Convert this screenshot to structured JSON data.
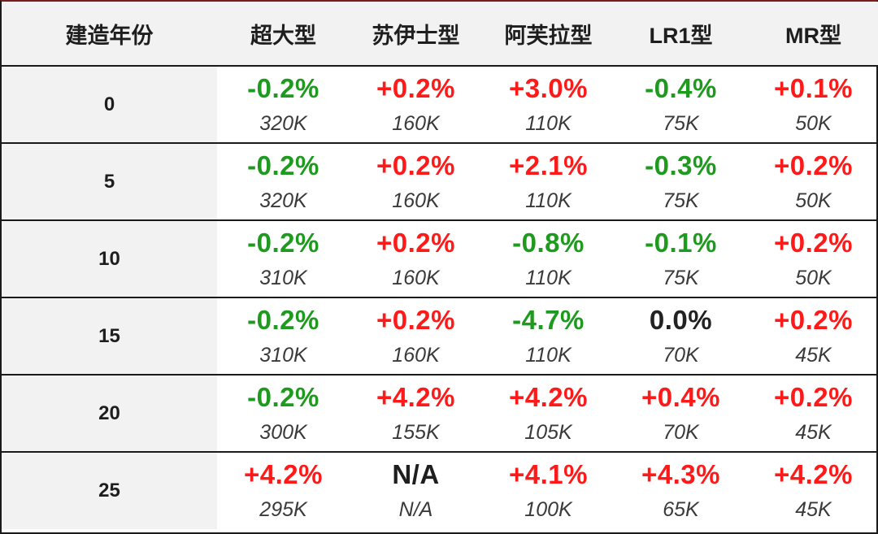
{
  "table": {
    "headers": [
      "建造年份",
      "超大型",
      "苏伊士型",
      "阿芙拉型",
      "LR1型",
      "MR型"
    ],
    "rows": [
      {
        "year": "0",
        "cells": [
          {
            "change": "-0.2%",
            "sign": "neg",
            "price": "320K"
          },
          {
            "change": "+0.2%",
            "sign": "pos",
            "price": "160K"
          },
          {
            "change": "+3.0%",
            "sign": "pos",
            "price": "110K"
          },
          {
            "change": "-0.4%",
            "sign": "neg",
            "price": "75K"
          },
          {
            "change": "+0.1%",
            "sign": "pos",
            "price": "50K"
          }
        ]
      },
      {
        "year": "5",
        "cells": [
          {
            "change": "-0.2%",
            "sign": "neg",
            "price": "320K"
          },
          {
            "change": "+0.2%",
            "sign": "pos",
            "price": "160K"
          },
          {
            "change": "+2.1%",
            "sign": "pos",
            "price": "110K"
          },
          {
            "change": "-0.3%",
            "sign": "neg",
            "price": "75K"
          },
          {
            "change": "+0.2%",
            "sign": "pos",
            "price": "50K"
          }
        ]
      },
      {
        "year": "10",
        "cells": [
          {
            "change": "-0.2%",
            "sign": "neg",
            "price": "310K"
          },
          {
            "change": "+0.2%",
            "sign": "pos",
            "price": "160K"
          },
          {
            "change": "-0.8%",
            "sign": "neg",
            "price": "110K"
          },
          {
            "change": "-0.1%",
            "sign": "neg",
            "price": "75K"
          },
          {
            "change": "+0.2%",
            "sign": "pos",
            "price": "50K"
          }
        ]
      },
      {
        "year": "15",
        "cells": [
          {
            "change": "-0.2%",
            "sign": "neg",
            "price": "310K"
          },
          {
            "change": "+0.2%",
            "sign": "pos",
            "price": "160K"
          },
          {
            "change": "-4.7%",
            "sign": "neg",
            "price": "110K"
          },
          {
            "change": "0.0%",
            "sign": "zero",
            "price": "70K"
          },
          {
            "change": "+0.2%",
            "sign": "pos",
            "price": "45K"
          }
        ]
      },
      {
        "year": "20",
        "cells": [
          {
            "change": "-0.2%",
            "sign": "neg",
            "price": "300K"
          },
          {
            "change": "+4.2%",
            "sign": "pos",
            "price": "155K"
          },
          {
            "change": "+4.2%",
            "sign": "pos",
            "price": "105K"
          },
          {
            "change": "+0.4%",
            "sign": "pos",
            "price": "70K"
          },
          {
            "change": "+0.2%",
            "sign": "pos",
            "price": "45K"
          }
        ]
      },
      {
        "year": "25",
        "cells": [
          {
            "change": "+4.2%",
            "sign": "pos",
            "price": "295K"
          },
          {
            "change": "N/A",
            "sign": "na",
            "price": "N/A"
          },
          {
            "change": "+4.1%",
            "sign": "pos",
            "price": "100K"
          },
          {
            "change": "+4.3%",
            "sign": "pos",
            "price": "65K"
          },
          {
            "change": "+4.2%",
            "sign": "pos",
            "price": "45K"
          }
        ]
      }
    ]
  },
  "colors": {
    "positive": "#ff1a1a",
    "negative": "#1e9a1e",
    "neutral": "#222222",
    "header_bg": "#f2f2f2",
    "border": "#1a1a1a"
  }
}
